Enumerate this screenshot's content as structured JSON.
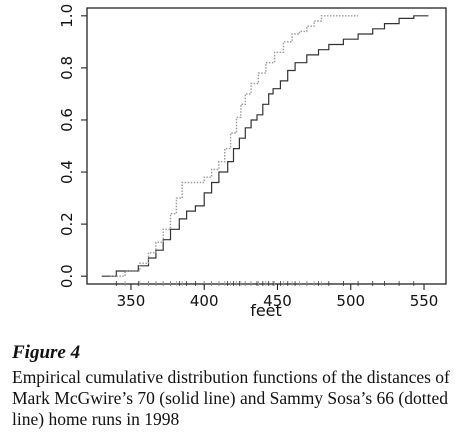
{
  "chart_data": {
    "type": "line",
    "xlabel": "feet",
    "ylabel": "",
    "xlim": [
      320,
      565
    ],
    "ylim": [
      -0.03,
      1.03
    ],
    "xticks": [
      "350",
      "400",
      "450",
      "500",
      "550"
    ],
    "yticks": [
      "0.0",
      "0.2",
      "0.4",
      "0.6",
      "0.8",
      "1.0"
    ],
    "grid": false,
    "series": [
      {
        "style": "solid",
        "color": "#333333",
        "steps": [
          [
            330,
            0
          ],
          [
            340,
            0.02
          ],
          [
            355,
            0.04
          ],
          [
            362,
            0.07
          ],
          [
            367,
            0.1
          ],
          [
            372,
            0.14
          ],
          [
            377,
            0.18
          ],
          [
            383,
            0.22
          ],
          [
            388,
            0.25
          ],
          [
            394,
            0.27
          ],
          [
            400,
            0.32
          ],
          [
            405,
            0.36
          ],
          [
            410,
            0.4
          ],
          [
            416,
            0.44
          ],
          [
            420,
            0.49
          ],
          [
            424,
            0.53
          ],
          [
            428,
            0.57
          ],
          [
            432,
            0.6
          ],
          [
            436,
            0.62
          ],
          [
            440,
            0.66
          ],
          [
            444,
            0.7
          ],
          [
            447,
            0.72
          ],
          [
            452,
            0.75
          ],
          [
            457,
            0.79
          ],
          [
            462,
            0.82
          ],
          [
            470,
            0.85
          ],
          [
            478,
            0.87
          ],
          [
            485,
            0.89
          ],
          [
            495,
            0.91
          ],
          [
            505,
            0.93
          ],
          [
            515,
            0.95
          ],
          [
            523,
            0.97
          ],
          [
            533,
            0.99
          ],
          [
            543,
            1.0
          ],
          [
            553,
            1.0
          ]
        ]
      },
      {
        "style": "dotted",
        "color": "#9a9a9a",
        "steps": [
          [
            336,
            0
          ],
          [
            346,
            0.02
          ],
          [
            356,
            0.05
          ],
          [
            362,
            0.09
          ],
          [
            367,
            0.13
          ],
          [
            372,
            0.18
          ],
          [
            377,
            0.24
          ],
          [
            381,
            0.3
          ],
          [
            385,
            0.36
          ],
          [
            400,
            0.38
          ],
          [
            405,
            0.41
          ],
          [
            410,
            0.44
          ],
          [
            414,
            0.49
          ],
          [
            418,
            0.55
          ],
          [
            422,
            0.61
          ],
          [
            425,
            0.66
          ],
          [
            428,
            0.7
          ],
          [
            432,
            0.74
          ],
          [
            437,
            0.78
          ],
          [
            442,
            0.82
          ],
          [
            448,
            0.86
          ],
          [
            454,
            0.9
          ],
          [
            460,
            0.93
          ],
          [
            465,
            0.94
          ],
          [
            470,
            0.96
          ],
          [
            475,
            0.98
          ],
          [
            480,
            1.0
          ],
          [
            505,
            1.0
          ]
        ]
      }
    ]
  },
  "caption": {
    "label": "Figure 4",
    "text": "Empirical cumulative distribution functions of the distances of Mark McGwire’s 70 (solid line) and Sammy Sosa’s 66 (dotted line) home runs in 1998"
  }
}
